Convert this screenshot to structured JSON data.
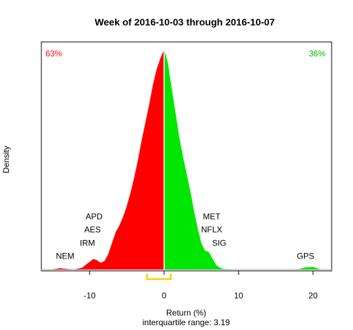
{
  "chart_data": {
    "type": "area",
    "title": "Week of 2016-10-03 through 2016-10-07",
    "xlabel": "Return (%)",
    "subtitle": "interquartile range: 3.19",
    "ylabel": "Density",
    "xlim": [
      -17,
      21.5
    ],
    "xticks": [
      -10,
      0,
      10,
      20
    ],
    "negative_share_label": "63%",
    "positive_share_label": "36%",
    "colors": {
      "negative": "#ff0000",
      "positive": "#00e600",
      "iqr": "#ffcc00",
      "baseline": "#c8c8c8",
      "split": "#ffffff"
    },
    "iqr_range": [
      -2.3,
      0.89
    ],
    "density": {
      "x": [
        -15.0,
        -14.0,
        -13.0,
        -12.0,
        -11.0,
        -10.0,
        -9.5,
        -9.0,
        -8.5,
        -8.0,
        -7.5,
        -7.0,
        -6.5,
        -6.0,
        -5.5,
        -5.0,
        -4.5,
        -4.0,
        -3.5,
        -3.0,
        -2.5,
        -2.0,
        -1.5,
        -1.0,
        -0.5,
        0.0,
        0.5,
        1.0,
        1.5,
        2.0,
        2.5,
        3.0,
        3.5,
        4.0,
        4.5,
        5.0,
        5.5,
        6.0,
        6.5,
        7.0,
        7.5,
        8.0,
        9.0,
        10.0,
        12.0,
        15.0,
        18.0,
        19.0,
        20.0,
        21.0
      ],
      "y": [
        0.0,
        0.006,
        0.002,
        0.0,
        0.008,
        0.035,
        0.048,
        0.042,
        0.03,
        0.038,
        0.07,
        0.12,
        0.17,
        0.2,
        0.24,
        0.29,
        0.35,
        0.42,
        0.5,
        0.59,
        0.67,
        0.75,
        0.84,
        0.91,
        0.96,
        1.0,
        0.94,
        0.83,
        0.72,
        0.61,
        0.52,
        0.44,
        0.36,
        0.27,
        0.19,
        0.12,
        0.085,
        0.08,
        0.05,
        0.02,
        0.008,
        0.002,
        0.0,
        0.0,
        0.0,
        0.0,
        0.0,
        0.01,
        0.012,
        0.0
      ]
    },
    "annotations": [
      {
        "text": "NEM",
        "x": -13.3,
        "level": 0.048
      },
      {
        "text": "IRM",
        "x": -10.3,
        "level": 0.108
      },
      {
        "text": "AES",
        "x": -9.6,
        "level": 0.168
      },
      {
        "text": "APD",
        "x": -9.4,
        "level": 0.228
      },
      {
        "text": "MET",
        "x": 6.4,
        "level": 0.228
      },
      {
        "text": "NFLX",
        "x": 6.4,
        "level": 0.168
      },
      {
        "text": "SIG",
        "x": 7.4,
        "level": 0.108
      },
      {
        "text": "GPS",
        "x": 19.0,
        "level": 0.048
      }
    ]
  }
}
